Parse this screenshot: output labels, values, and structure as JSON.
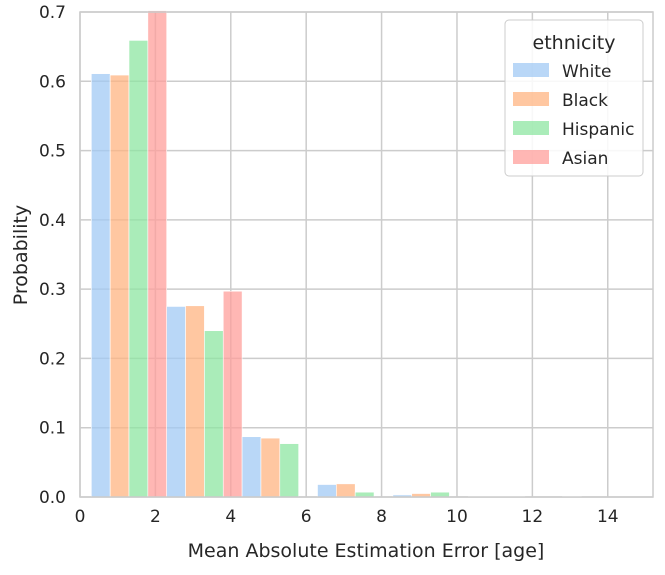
{
  "chart_data": {
    "type": "bar",
    "title": "",
    "xlabel": "Mean Absolute Estimation Error [age]",
    "ylabel": "Probability",
    "xlim": [
      0,
      15.2
    ],
    "ylim": [
      0,
      0.7
    ],
    "grid": true,
    "bin_edges": [
      0.3,
      2.3,
      4.3,
      6.3,
      8.3,
      10.3,
      12.3,
      14.3
    ],
    "x_ticks": [
      0,
      2,
      4,
      6,
      8,
      10,
      12,
      14
    ],
    "x_tick_labels": [
      "0",
      "2",
      "4",
      "6",
      "8",
      "10",
      "12",
      "14"
    ],
    "y_ticks": [
      0.0,
      0.1,
      0.2,
      0.3,
      0.4,
      0.5,
      0.6,
      0.7
    ],
    "y_tick_labels": [
      "0.0",
      "0.1",
      "0.2",
      "0.3",
      "0.4",
      "0.5",
      "0.6",
      "0.7"
    ],
    "legend": {
      "title": "ethnicity",
      "placement": "top-right"
    },
    "series": [
      {
        "name": "White",
        "color": "#a1c9f4",
        "values": [
          0.611,
          0.275,
          0.087,
          0.018,
          0.003,
          0.001,
          0.0
        ]
      },
      {
        "name": "Black",
        "color": "#ffb482",
        "values": [
          0.609,
          0.276,
          0.085,
          0.019,
          0.005,
          0.001,
          0.001
        ]
      },
      {
        "name": "Hispanic",
        "color": "#8de5a1",
        "values": [
          0.659,
          0.24,
          0.077,
          0.007,
          0.007,
          0.001,
          0.0
        ]
      },
      {
        "name": "Asian",
        "color": "#ff9f9b",
        "values": [
          0.702,
          0.297,
          0.0,
          0.0,
          0.0,
          0.0,
          0.0
        ]
      }
    ]
  }
}
